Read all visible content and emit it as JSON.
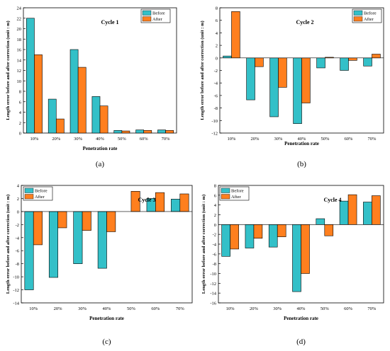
{
  "colors": {
    "before": "#33C0C8",
    "after": "#FF7F1E",
    "stroke": "#000000"
  },
  "chart_data": [
    {
      "type": "bar",
      "title": "Cycle 1",
      "panel_label": "(a)",
      "xlabel": "Penetration rate",
      "ylabel": "Length error before and after correction (unit : m)",
      "categories": [
        "10%",
        "20%",
        "30%",
        "40%",
        "50%",
        "60%",
        "70%"
      ],
      "ylim": [
        0,
        24
      ],
      "yticks": [
        0,
        2,
        4,
        6,
        8,
        10,
        12,
        14,
        16,
        18,
        20,
        22,
        24
      ],
      "series": [
        {
          "name": "Before",
          "values": [
            22,
            6.5,
            16,
            7,
            0.5,
            0.6,
            0.6
          ]
        },
        {
          "name": "After",
          "values": [
            15,
            2.7,
            12.6,
            5.2,
            0.4,
            0.5,
            0.5
          ]
        }
      ],
      "legend": "top-right"
    },
    {
      "type": "bar",
      "title": "Cycle 2",
      "panel_label": "(b)",
      "xlabel": "Penetration rate",
      "ylabel": "Length error before and after correction (unit : m)",
      "categories": [
        "10%",
        "20%",
        "30%",
        "40%",
        "50%",
        "60%",
        "70%"
      ],
      "ylim": [
        -12,
        8
      ],
      "yticks": [
        -12,
        -10,
        -8,
        -6,
        -4,
        -2,
        0,
        2,
        4,
        6,
        8
      ],
      "series": [
        {
          "name": "Before",
          "values": [
            0.3,
            -6.7,
            -9.4,
            -10.5,
            -1.6,
            -2.0,
            -1.3
          ]
        },
        {
          "name": "After",
          "values": [
            7.4,
            -1.4,
            -4.7,
            -7.2,
            0.1,
            -0.4,
            0.6
          ]
        }
      ],
      "legend": "top-right"
    },
    {
      "type": "bar",
      "title": "Cycle 3",
      "panel_label": "(c)",
      "xlabel": "Penetration rate",
      "ylabel": "Length error before and after correction (unit : m)",
      "categories": [
        "10%",
        "20%",
        "30%",
        "40%",
        "50%",
        "60%",
        "70%"
      ],
      "ylim": [
        -14,
        4
      ],
      "yticks": [
        -14,
        -12,
        -10,
        -8,
        -6,
        -4,
        -2,
        0,
        2,
        4
      ],
      "series": [
        {
          "name": "Before",
          "values": [
            -12,
            -10.1,
            -8,
            -8.7,
            0,
            2.0,
            1.9
          ]
        },
        {
          "name": "After",
          "values": [
            -5.1,
            -2.5,
            -2.9,
            -3.1,
            3.1,
            2.9,
            2.7
          ]
        }
      ],
      "legend": "top-left"
    },
    {
      "type": "bar",
      "title": "Cycle 4",
      "panel_label": "(d)",
      "xlabel": "Penetration rate",
      "ylabel": "Length error before and after correction (unit : m)",
      "categories": [
        "10%",
        "20%",
        "30%",
        "40%",
        "50%",
        "60%",
        "70%"
      ],
      "ylim": [
        -16,
        8
      ],
      "yticks": [
        -16,
        -14,
        -12,
        -10,
        -8,
        -6,
        -4,
        -2,
        0,
        2,
        4,
        6,
        8
      ],
      "series": [
        {
          "name": "Before",
          "values": [
            -6.5,
            -4.8,
            -4.6,
            -13.7,
            1.2,
            4.8,
            4.6
          ]
        },
        {
          "name": "After",
          "values": [
            -5.0,
            -2.8,
            -2.5,
            -10.0,
            -2.3,
            6.1,
            5.9
          ]
        }
      ],
      "legend": "top-left"
    }
  ]
}
